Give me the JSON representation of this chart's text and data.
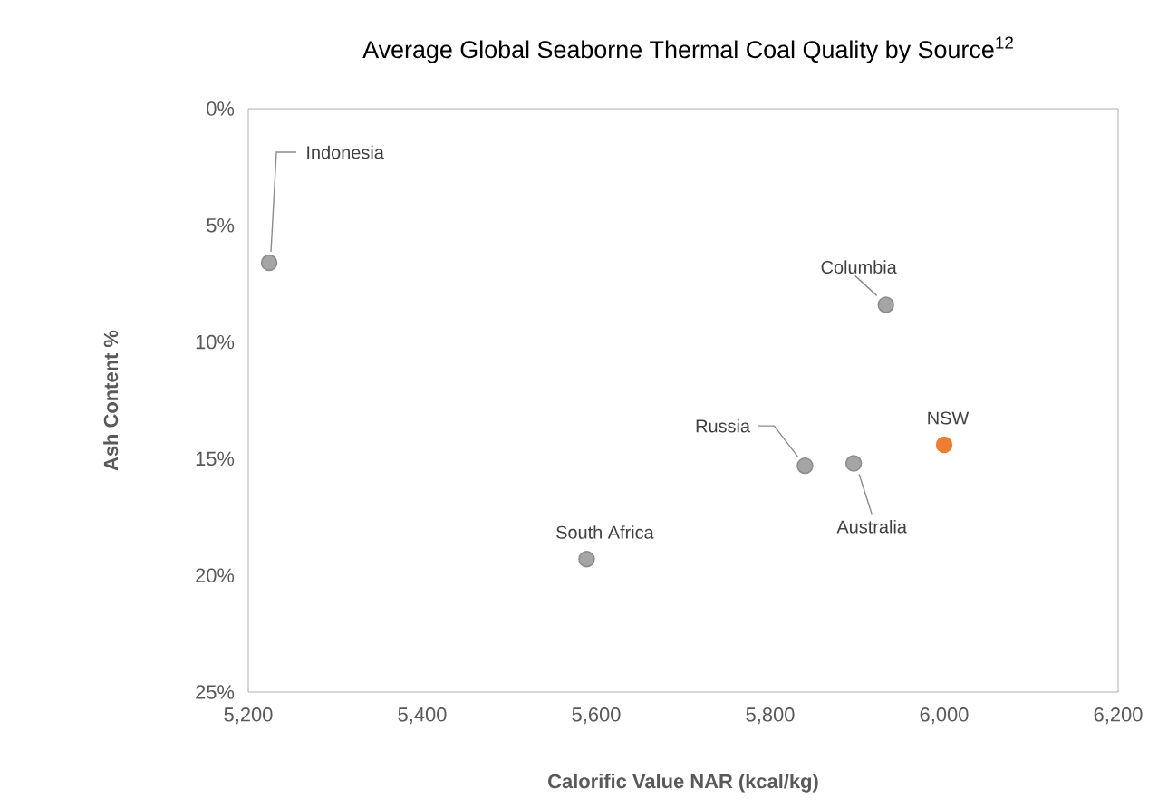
{
  "chart_data": {
    "type": "scatter",
    "title": "Average Global Seaborne Thermal Coal Quality by Source$^{12}$",
    "xlabel": "Calorific Value NAR (kcal/kg)",
    "ylabel": "Ash Content %",
    "series": [
      {
        "color": "#a5a5a5",
        "x": [
          5224,
          5933,
          5840,
          5896,
          5589
        ],
        "values": [
          6.6,
          8.4,
          15.3,
          15.2,
          19.3
        ]
      },
      {
        "color": "#ed7d31",
        "x": [
          6000
        ],
        "values": [
          14.4
        ]
      }
    ],
    "xlim": [
      5200,
      6200
    ],
    "xticks": [
      {
        "value": 5200,
        "label": "5,200"
      },
      {
        "value": 5400,
        "label": "5,400"
      },
      {
        "value": 5600,
        "label": "5,600"
      },
      {
        "value": 5800,
        "label": "5,800"
      },
      {
        "value": 6000,
        "label": "6,000"
      },
      {
        "value": 6200,
        "label": "6,200"
      }
    ],
    "ylim": [
      25,
      0
    ],
    "yticks": [
      {
        "value": 0,
        "label": "0%"
      },
      {
        "value": 5,
        "label": "5%"
      },
      {
        "value": 10,
        "label": "10%"
      },
      {
        "value": 15,
        "label": "15%"
      },
      {
        "value": 20,
        "label": "20%"
      },
      {
        "value": 25,
        "label": "25%"
      }
    ],
    "marker": "circle",
    "grid": false,
    "annotations": [
      {
        "text": "Indonesia",
        "x": 5224,
        "y": 6.6
      },
      {
        "text": "Columbia",
        "x": 5933,
        "y": 8.4
      },
      {
        "text": "Russia",
        "x": 5840,
        "y": 15.3
      },
      {
        "text": "Australia",
        "x": 5896,
        "y": 15.2
      },
      {
        "text": "NSW",
        "x": 6000,
        "y": 14.4
      },
      {
        "text": "South Africa",
        "x": 5589,
        "y": 19.3
      }
    ]
  }
}
